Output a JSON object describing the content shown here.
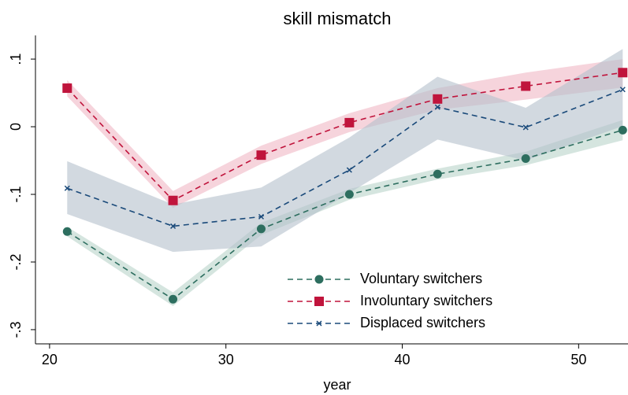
{
  "chart_data": {
    "type": "line",
    "title": "skill mismatch",
    "x_label": "year",
    "x": [
      21,
      27,
      32,
      37,
      42,
      47,
      52.5
    ],
    "xlim": [
      19.2,
      52.8
    ],
    "xticks": [
      20,
      30,
      40,
      50
    ],
    "ylim": [
      -0.321,
      0.135
    ],
    "yticks": [
      {
        "value": 0.1,
        "label": ".1"
      },
      0,
      {
        "value": -0.1,
        "label": "-.1"
      },
      {
        "value": -0.2,
        "label": "-.2"
      },
      {
        "value": -0.3,
        "label": "-.3"
      }
    ],
    "series": [
      {
        "name": "Voluntary switchers",
        "color": "#2d6e5f",
        "band_color": "#b9d3c9",
        "marker": "circle",
        "values": [
          -0.155,
          -0.255,
          -0.151,
          -0.1,
          -0.07,
          -0.047,
          -0.005
        ],
        "lower": [
          -0.162,
          -0.265,
          -0.16,
          -0.108,
          -0.078,
          -0.057,
          -0.02
        ],
        "upper": [
          -0.148,
          -0.245,
          -0.142,
          -0.092,
          -0.062,
          -0.037,
          0.01
        ]
      },
      {
        "name": "Involuntary switchers",
        "color": "#c0143c",
        "band_color": "#f0b7c4",
        "marker": "square",
        "values": [
          0.057,
          -0.109,
          -0.042,
          0.006,
          0.041,
          0.06,
          0.08
        ],
        "lower": [
          0.045,
          -0.12,
          -0.055,
          -0.008,
          0.025,
          0.04,
          0.058
        ],
        "upper": [
          0.069,
          -0.095,
          -0.028,
          0.02,
          0.057,
          0.08,
          0.1
        ]
      },
      {
        "name": "Displaced switchers",
        "color": "#1a4a7a",
        "band_color": "#b4c0cc",
        "marker": "x",
        "values": [
          -0.091,
          -0.147,
          -0.133,
          -0.064,
          0.029,
          -0.001,
          0.055
        ],
        "lower": [
          -0.129,
          -0.185,
          -0.177,
          -0.098,
          -0.019,
          -0.05,
          0.001
        ],
        "upper": [
          -0.051,
          -0.115,
          -0.09,
          -0.016,
          0.074,
          0.028,
          0.115
        ]
      }
    ],
    "legend": "lower-right"
  }
}
